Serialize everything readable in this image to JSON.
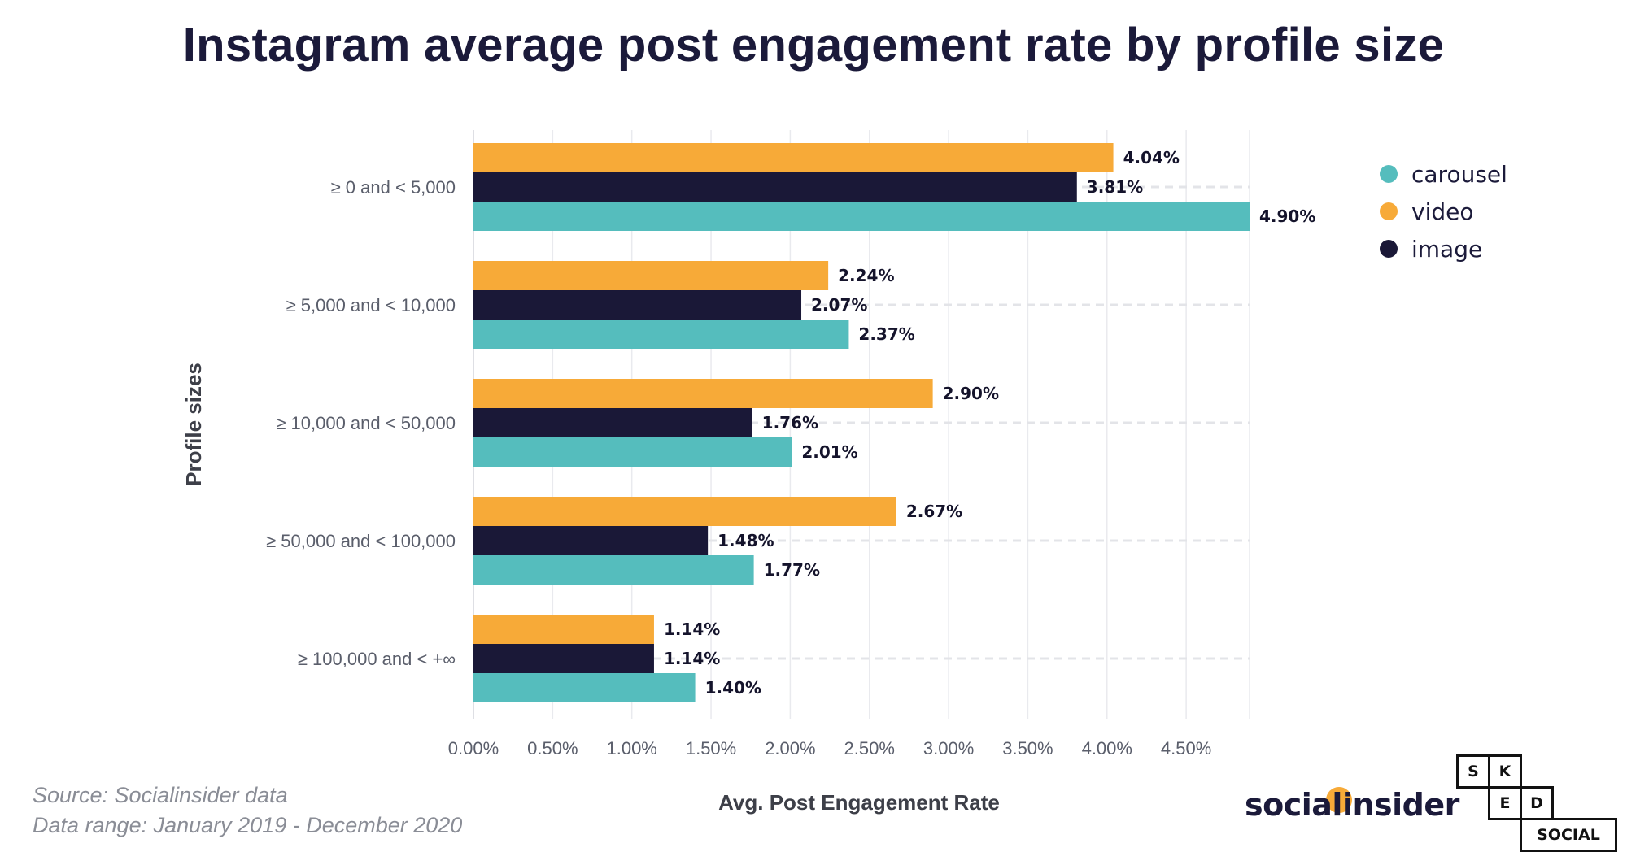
{
  "chart_data": {
    "type": "bar",
    "orientation": "horizontal",
    "title": "Instagram average post engagement rate by profile size",
    "xlabel": "Avg. Post Engagement Rate",
    "ylabel": "Profile sizes",
    "categories": [
      "≥ 0 and < 5,000",
      "≥ 5,000 and < 10,000",
      "≥ 10,000 and < 50,000",
      "≥ 50,000 and < 100,000",
      "≥ 100,000 and < +∞"
    ],
    "series": [
      {
        "name": "video",
        "color": "#f7aa38",
        "values": [
          4.04,
          2.24,
          2.9,
          2.67,
          1.14
        ],
        "labels": [
          "4.04%",
          "2.24%",
          "2.90%",
          "2.67%",
          "1.14%"
        ]
      },
      {
        "name": "image",
        "color": "#1a1837",
        "values": [
          3.81,
          2.07,
          1.76,
          1.48,
          1.14
        ],
        "labels": [
          "3.81%",
          "2.07%",
          "1.76%",
          "1.48%",
          "1.14%"
        ]
      },
      {
        "name": "carousel",
        "color": "#55bdbd",
        "values": [
          4.9,
          2.37,
          2.01,
          1.77,
          1.4
        ],
        "labels": [
          "4.90%",
          "2.37%",
          "2.01%",
          "1.77%",
          "1.40%"
        ]
      }
    ],
    "xlim": [
      0,
      4.9
    ],
    "xticks": [
      0,
      0.5,
      1.0,
      1.5,
      2.0,
      2.5,
      3.0,
      3.5,
      4.0,
      4.5
    ],
    "xtick_labels": [
      "0.00%",
      "0.50%",
      "1.00%",
      "1.50%",
      "2.00%",
      "2.50%",
      "3.00%",
      "3.50%",
      "4.00%",
      "4.50%"
    ],
    "grid": true,
    "legend": {
      "position": "top-right",
      "entries": [
        {
          "name": "carousel",
          "color": "#55bdbd"
        },
        {
          "name": "video",
          "color": "#f7aa38"
        },
        {
          "name": "image",
          "color": "#1a1837"
        }
      ]
    }
  },
  "source": {
    "line1": "Source: Socialinsider data",
    "line2": "Data range: January 2019 - December 2020"
  },
  "logos": {
    "socialinsider": "socialinsider",
    "sked_letters": [
      "S",
      "K",
      "E",
      "D"
    ],
    "sked_social": "SOCIAL"
  }
}
